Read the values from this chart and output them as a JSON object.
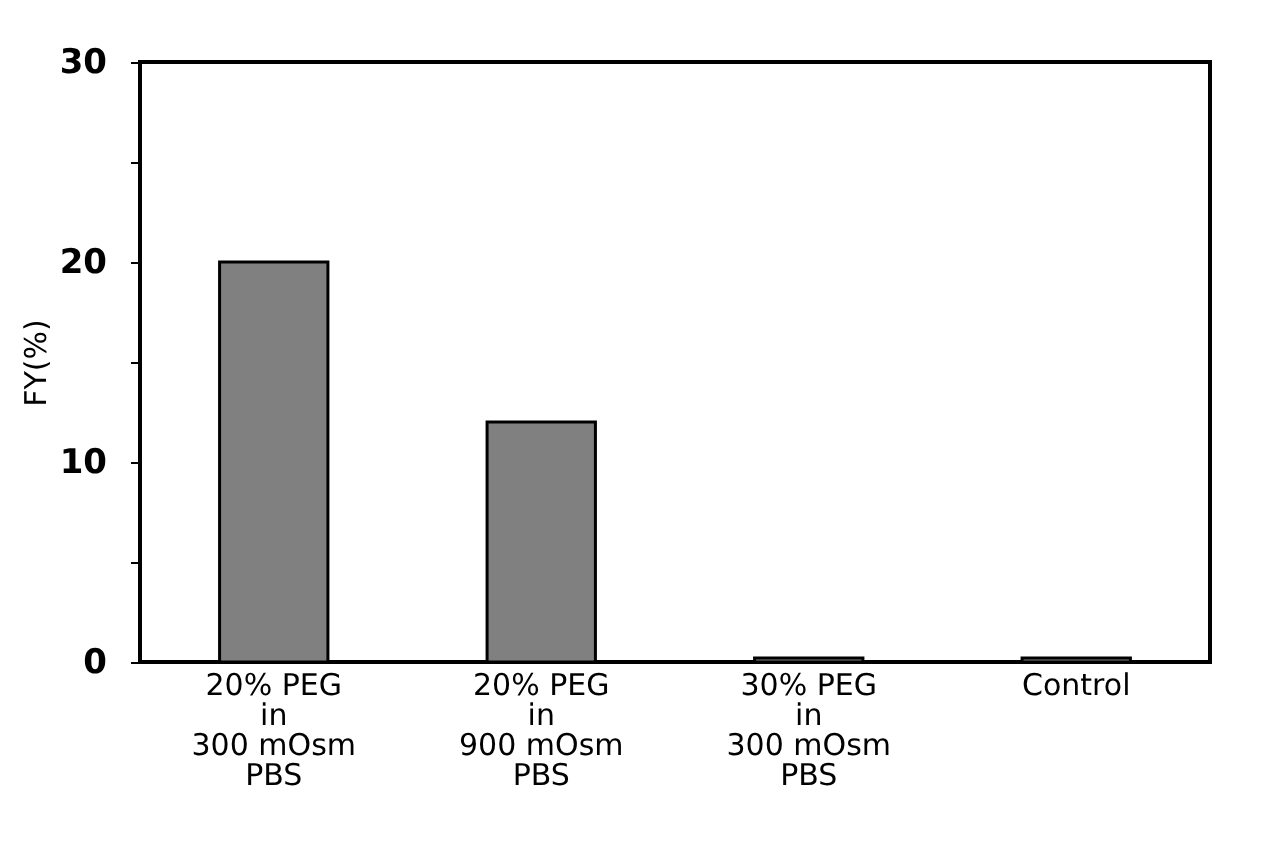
{
  "chart_data": {
    "type": "bar",
    "ylabel": "FY(%)",
    "categories": [
      "20% PEG\nin\n300 mOsm\nPBS",
      "20% PEG\nin\n900 mOsm\nPBS",
      "30% PEG\nin\n300 mOsm\nPBS",
      "Control"
    ],
    "values": [
      20,
      12,
      0.2,
      0.2
    ],
    "color": "#808080",
    "ylim": [
      0,
      30
    ],
    "yticks": [
      0,
      {
        "value": 5,
        "label": null
      },
      10,
      {
        "value": 15,
        "label": null
      },
      20,
      {
        "value": 25,
        "label": null
      },
      30
    ],
    "grid": false
  }
}
